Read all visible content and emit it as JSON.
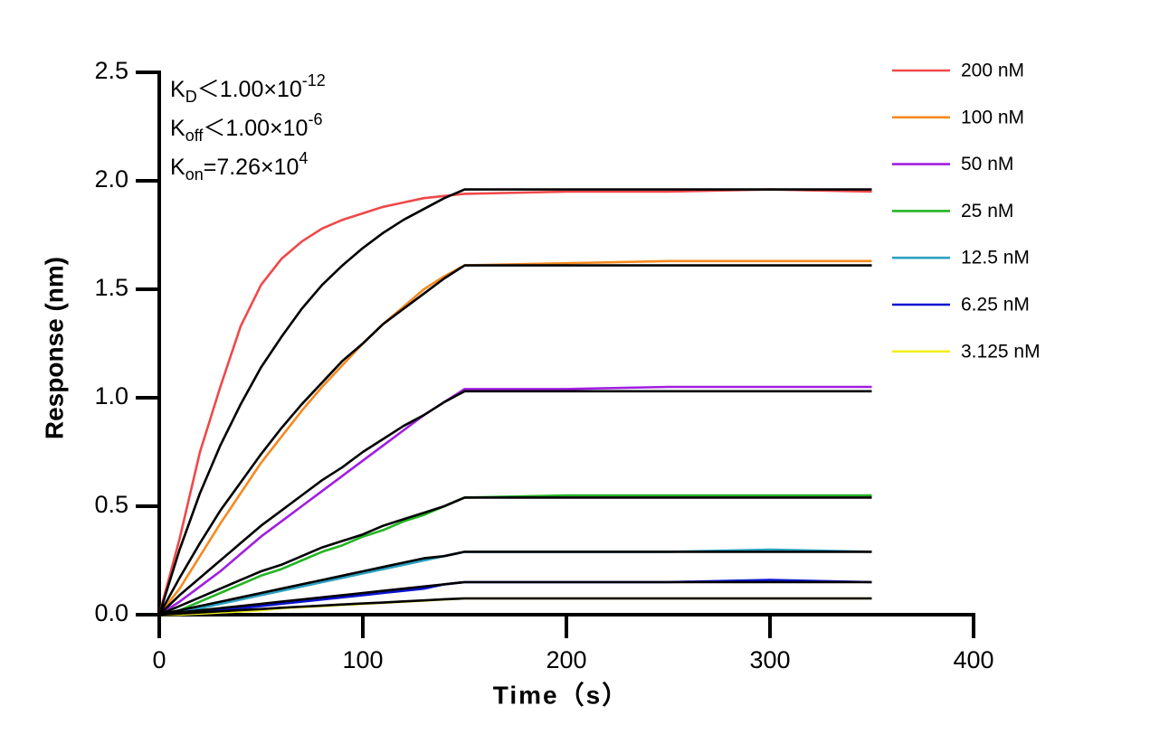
{
  "chart_data": {
    "type": "line",
    "x_label": "Time（s）",
    "y_label": "Response (nm)",
    "x": [
      0,
      10,
      20,
      30,
      40,
      50,
      60,
      70,
      80,
      90,
      100,
      110,
      120,
      130,
      140,
      150,
      200,
      250,
      300,
      350
    ],
    "series": [
      {
        "name": "200 nM",
        "color": "#f0484a",
        "values": [
          0,
          0.35,
          0.75,
          1.05,
          1.33,
          1.52,
          1.64,
          1.72,
          1.78,
          1.82,
          1.85,
          1.88,
          1.9,
          1.92,
          1.93,
          1.94,
          1.95,
          1.95,
          1.96,
          1.95
        ]
      },
      {
        "name": "100 nM",
        "color": "#f58a1f",
        "values": [
          0,
          0.12,
          0.27,
          0.42,
          0.56,
          0.7,
          0.82,
          0.94,
          1.05,
          1.15,
          1.25,
          1.34,
          1.42,
          1.5,
          1.56,
          1.61,
          1.62,
          1.63,
          1.63,
          1.63
        ]
      },
      {
        "name": "50 nM",
        "color": "#a11ee0",
        "values": [
          0,
          0.06,
          0.13,
          0.2,
          0.28,
          0.36,
          0.43,
          0.5,
          0.57,
          0.64,
          0.71,
          0.78,
          0.85,
          0.92,
          0.98,
          1.04,
          1.04,
          1.05,
          1.05,
          1.05
        ]
      },
      {
        "name": "25 nM",
        "color": "#22b522",
        "values": [
          0,
          0.02,
          0.06,
          0.1,
          0.14,
          0.18,
          0.21,
          0.25,
          0.29,
          0.32,
          0.36,
          0.39,
          0.43,
          0.46,
          0.5,
          0.54,
          0.55,
          0.55,
          0.55,
          0.55
        ]
      },
      {
        "name": "12.5 nM",
        "color": "#2aa0c0",
        "values": [
          0,
          0.01,
          0.03,
          0.05,
          0.07,
          0.09,
          0.11,
          0.13,
          0.15,
          0.17,
          0.19,
          0.21,
          0.23,
          0.25,
          0.27,
          0.29,
          0.29,
          0.29,
          0.3,
          0.29
        ]
      },
      {
        "name": "6.25 nM",
        "color": "#0a14d0",
        "values": [
          0,
          0.01,
          0.01,
          0.02,
          0.03,
          0.04,
          0.05,
          0.06,
          0.07,
          0.08,
          0.09,
          0.1,
          0.11,
          0.12,
          0.14,
          0.15,
          0.15,
          0.15,
          0.16,
          0.15
        ]
      },
      {
        "name": "3.125 nM",
        "color": "#f2ee1a",
        "values": [
          0,
          0,
          0.005,
          0.01,
          0.015,
          0.02,
          0.03,
          0.035,
          0.04,
          0.045,
          0.05,
          0.055,
          0.06,
          0.065,
          0.07,
          0.075,
          0.075,
          0.075,
          0.075,
          0.075
        ]
      }
    ],
    "fits": [
      {
        "color": "#000000",
        "values": [
          0,
          0.3,
          0.56,
          0.78,
          0.97,
          1.14,
          1.28,
          1.41,
          1.52,
          1.61,
          1.69,
          1.76,
          1.82,
          1.87,
          1.92,
          1.96,
          1.96,
          1.96,
          1.96,
          1.96
        ]
      },
      {
        "color": "#000000",
        "values": [
          0,
          0.17,
          0.33,
          0.48,
          0.61,
          0.74,
          0.86,
          0.97,
          1.07,
          1.17,
          1.25,
          1.34,
          1.41,
          1.48,
          1.55,
          1.61,
          1.61,
          1.61,
          1.61,
          1.61
        ]
      },
      {
        "color": "#000000",
        "values": [
          0,
          0.09,
          0.17,
          0.25,
          0.33,
          0.41,
          0.48,
          0.55,
          0.62,
          0.68,
          0.75,
          0.81,
          0.87,
          0.92,
          0.98,
          1.03,
          1.03,
          1.03,
          1.03,
          1.03
        ]
      },
      {
        "color": "#000000",
        "values": [
          0,
          0.04,
          0.08,
          0.12,
          0.16,
          0.2,
          0.23,
          0.27,
          0.31,
          0.34,
          0.37,
          0.41,
          0.44,
          0.47,
          0.5,
          0.54,
          0.54,
          0.54,
          0.54,
          0.54
        ]
      },
      {
        "color": "#000000",
        "values": [
          0,
          0.02,
          0.04,
          0.06,
          0.08,
          0.1,
          0.12,
          0.14,
          0.16,
          0.18,
          0.2,
          0.22,
          0.24,
          0.26,
          0.27,
          0.29,
          0.29,
          0.29,
          0.29,
          0.29
        ]
      },
      {
        "color": "#000000",
        "values": [
          0,
          0.01,
          0.02,
          0.03,
          0.04,
          0.05,
          0.06,
          0.07,
          0.08,
          0.09,
          0.1,
          0.11,
          0.12,
          0.13,
          0.14,
          0.15,
          0.15,
          0.15,
          0.15,
          0.15
        ]
      },
      {
        "color": "#000000",
        "values": [
          0,
          0.005,
          0.01,
          0.016,
          0.021,
          0.026,
          0.032,
          0.037,
          0.042,
          0.047,
          0.052,
          0.056,
          0.061,
          0.066,
          0.071,
          0.075,
          0.075,
          0.075,
          0.075,
          0.075
        ]
      }
    ],
    "annotations": [
      {
        "base": "K",
        "sub": "D",
        "text": "＜1.00×10",
        "sup": "-12"
      },
      {
        "base": "K",
        "sub": "off",
        "text": "＜1.00×10",
        "sup": "-6"
      },
      {
        "base": "K",
        "sub": "on",
        "text": "=7.26×10",
        "sup": "4"
      }
    ],
    "xlim": [
      0,
      400
    ],
    "xticks": [
      0,
      100,
      200,
      300,
      400
    ],
    "ylim": [
      0,
      2.5
    ],
    "yticks": [
      {
        "value": 0,
        "label": "0.0"
      },
      0.5,
      {
        "value": 1,
        "label": "1.0"
      },
      1.5,
      {
        "value": 2,
        "label": "2.0"
      },
      2.5
    ],
    "grid": false,
    "legend": "right"
  }
}
